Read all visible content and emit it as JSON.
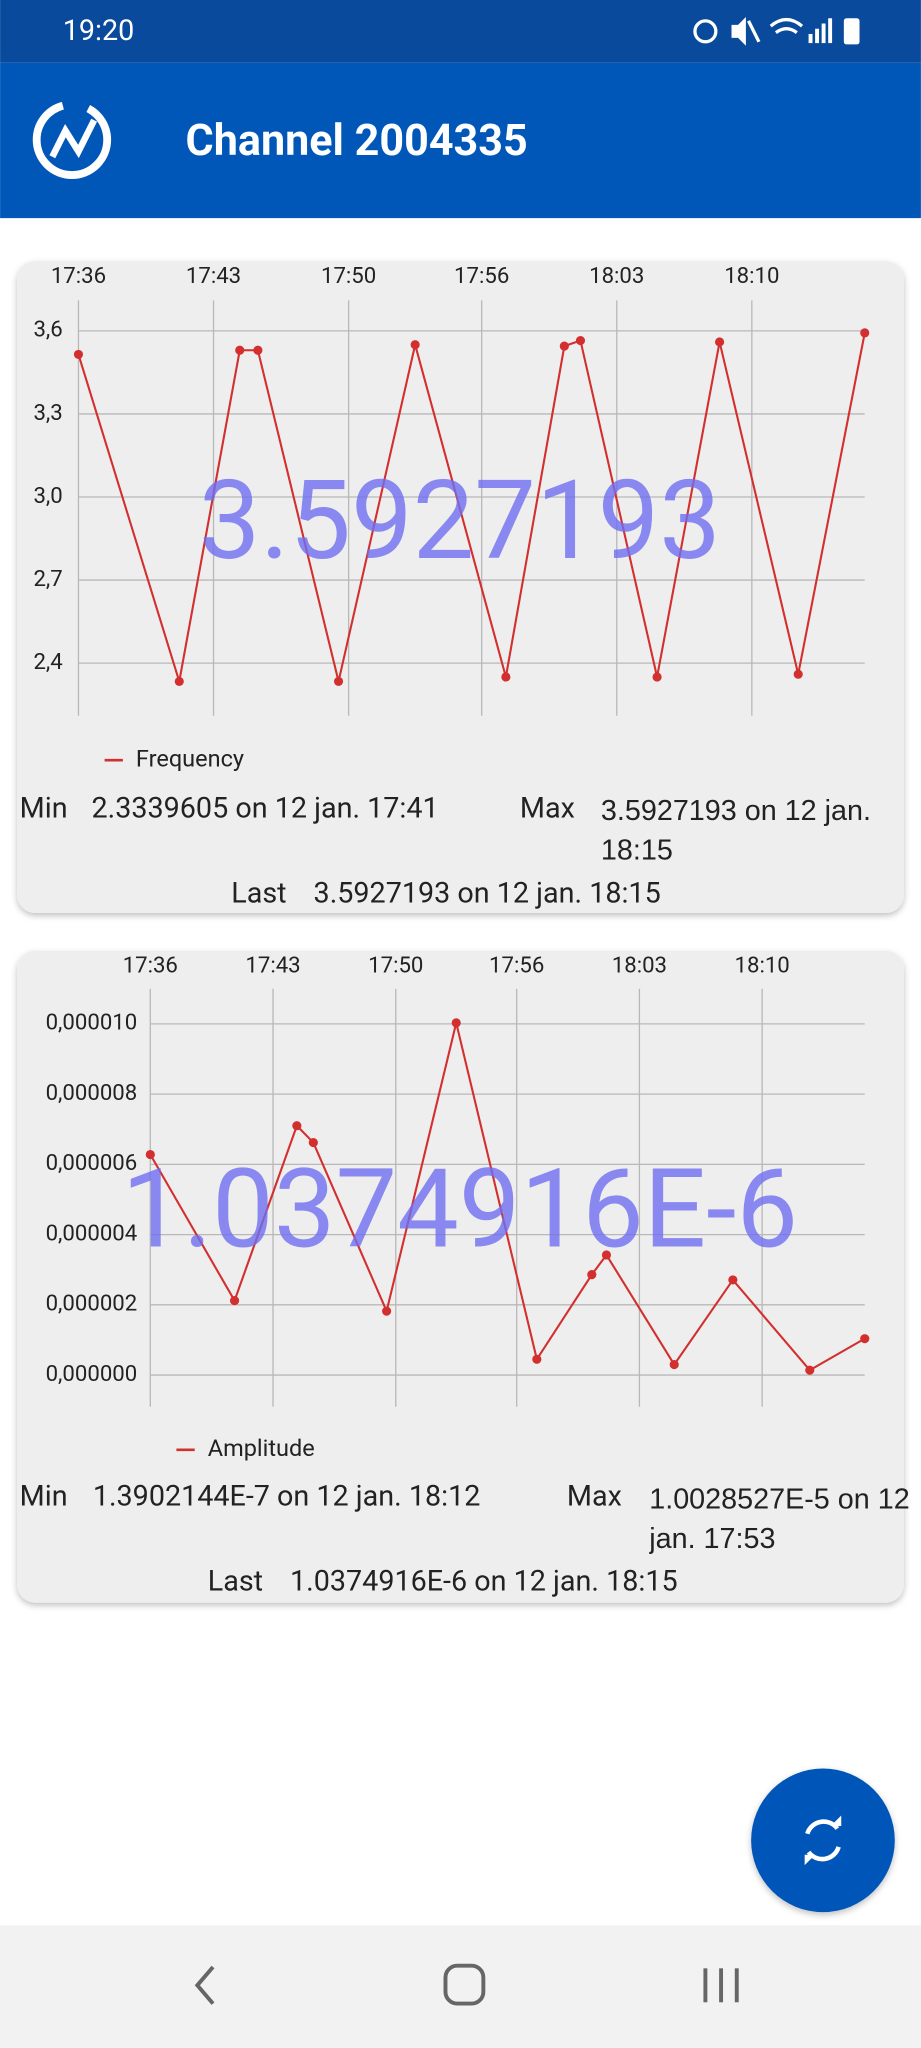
{
  "status_bar": {
    "time": "19:20"
  },
  "app_bar": {
    "title": "Channel 2004335"
  },
  "chart_data": [
    {
      "type": "line",
      "x": [
        1056,
        1061,
        1064,
        1064.9,
        1068.9,
        1072.7,
        1077.2,
        1080.1,
        1080.9,
        1084.7,
        1087.8,
        1091.7,
        1095
      ],
      "series": [
        {
          "name": "Frequency",
          "color": "#d32f2f",
          "values": [
            3.515,
            2.3339605,
            3.53,
            3.53,
            2.334,
            3.55,
            2.35,
            3.545,
            3.565,
            2.35,
            3.56,
            2.36,
            3.5927193
          ]
        }
      ],
      "xlim": [
        1056,
        1095
      ],
      "xticks": [
        {
          "value": 1056,
          "label": "17:36"
        },
        {
          "value": 1062.7,
          "label": "17:43"
        },
        {
          "value": 1069.4,
          "label": "17:50"
        },
        {
          "value": 1076,
          "label": "17:56"
        },
        {
          "value": 1082.7,
          "label": "18:03"
        },
        {
          "value": 1089.4,
          "label": "18:10"
        }
      ],
      "ylim": [
        2.21,
        3.71
      ],
      "yticks": [
        {
          "value": 2.4,
          "label": "2,4"
        },
        {
          "value": 2.7,
          "label": "2,7"
        },
        {
          "value": 3.0,
          "label": "3,0"
        },
        {
          "value": 3.3,
          "label": "3,3"
        },
        {
          "value": 3.6,
          "label": "3,6"
        }
      ],
      "grid": true,
      "overlay": "3.5927193",
      "stats": {
        "min_label": "Min",
        "min": "2.3339605 on 12 jan. 17:41",
        "max_label": "Max",
        "max": "3.5927193 on 12 jan. 18:15",
        "last_label": "Last",
        "last": "3.5927193 on 12 jan. 18:15"
      }
    },
    {
      "type": "line",
      "x": [
        1056,
        1060.6,
        1064,
        1064.9,
        1068.9,
        1072.7,
        1077.1,
        1080.1,
        1080.9,
        1084.6,
        1087.8,
        1092,
        1095
      ],
      "series": [
        {
          "name": "Amplitude",
          "color": "#d32f2f",
          "values": [
            6.28e-06,
            2.12e-06,
            7.1e-06,
            6.62e-06,
            1.82e-06,
            1.0028527e-05,
            4.5e-07,
            2.86e-06,
            3.42e-06,
            3e-07,
            2.71e-06,
            1.3902144e-07,
            1.0374916e-06
          ]
        }
      ],
      "xlim": [
        1056,
        1095
      ],
      "xticks": [
        {
          "value": 1056,
          "label": "17:36"
        },
        {
          "value": 1062.7,
          "label": "17:43"
        },
        {
          "value": 1069.4,
          "label": "17:50"
        },
        {
          "value": 1076,
          "label": "17:56"
        },
        {
          "value": 1082.7,
          "label": "18:03"
        },
        {
          "value": 1089.4,
          "label": "18:10"
        }
      ],
      "ylim": [
        -9e-07,
        1.1e-05
      ],
      "yticks": [
        {
          "value": 0,
          "label": "0,000000"
        },
        {
          "value": 2e-06,
          "label": "0,000002"
        },
        {
          "value": 4e-06,
          "label": "0,000004"
        },
        {
          "value": 6e-06,
          "label": "0,000006"
        },
        {
          "value": 8e-06,
          "label": "0,000008"
        },
        {
          "value": 1e-05,
          "label": "0,000010"
        }
      ],
      "grid": true,
      "overlay": "1.0374916E-6",
      "stats": {
        "min_label": "Min",
        "min": "1.3902144E-7 on 12 jan. 18:12",
        "max_label": "Max",
        "max": "1.0028527E-5 on 12 jan. 17:53",
        "last_label": "Last",
        "last": "1.0374916E-6 on 12 jan. 18:15"
      }
    }
  ]
}
